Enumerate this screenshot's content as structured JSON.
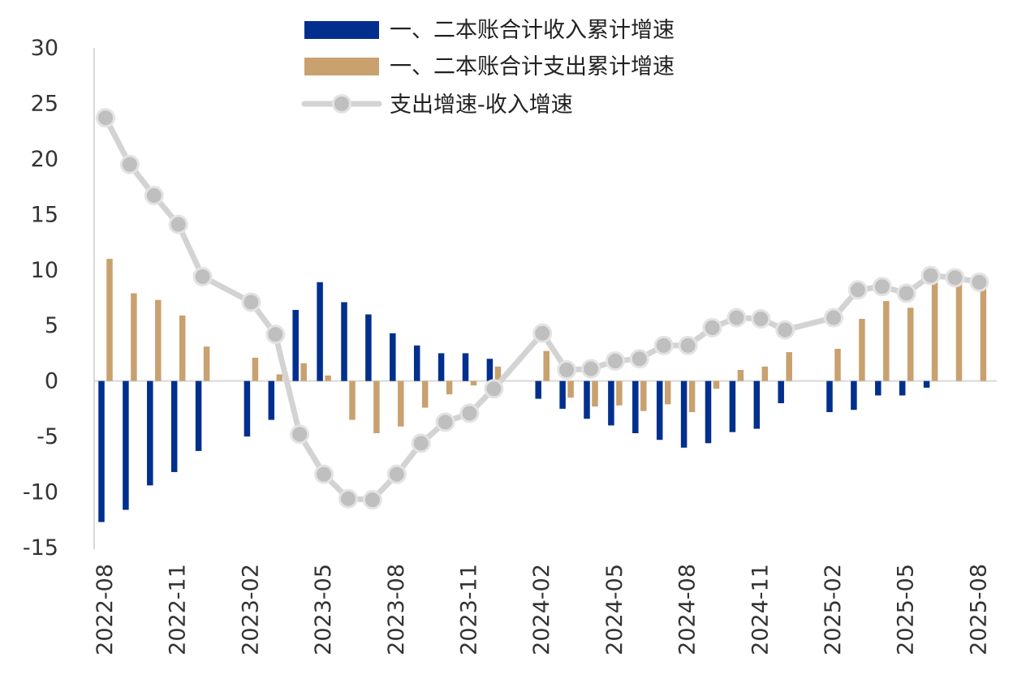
{
  "chart_data": {
    "type": "bar",
    "title": "",
    "xlabel": "",
    "ylabel": "",
    "ylim": [
      -15,
      30
    ],
    "yticks": [
      30,
      25,
      20,
      15,
      10,
      5,
      0,
      -5,
      -10,
      -15
    ],
    "x": [
      "2022-08",
      "2022-09",
      "2022-10",
      "2022-11",
      "2022-12",
      "2023-01",
      "2023-02",
      "2023-03",
      "2023-04",
      "2023-05",
      "2023-06",
      "2023-07",
      "2023-08",
      "2023-09",
      "2023-10",
      "2023-11",
      "2023-12",
      "2024-01",
      "2024-02",
      "2024-03",
      "2024-04",
      "2024-05",
      "2024-06",
      "2024-07",
      "2024-08",
      "2024-09",
      "2024-10",
      "2024-11",
      "2024-12",
      "2025-01",
      "2025-02",
      "2025-03",
      "2025-04",
      "2025-05",
      "2025-06",
      "2025-07",
      "2025-08"
    ],
    "xticks_shown": [
      "2022-08",
      "2022-11",
      "2023-02",
      "2023-05",
      "2023-08",
      "2023-11",
      "2024-02",
      "2024-05",
      "2024-08",
      "2024-11",
      "2025-02",
      "2025-05",
      "2025-08"
    ],
    "legend_position": "top",
    "grid": false,
    "series": [
      {
        "name": "一、二本账合计收入累计增速",
        "kind": "bar",
        "color": "#002f8e",
        "values": [
          -12.7,
          -11.6,
          -9.4,
          -8.2,
          -6.3,
          null,
          -5.0,
          -3.5,
          6.4,
          8.9,
          7.1,
          6.0,
          4.3,
          3.2,
          2.5,
          2.5,
          2.0,
          null,
          -1.6,
          -2.5,
          -3.4,
          -4.0,
          -4.7,
          -5.3,
          -6.0,
          -5.6,
          -4.6,
          -4.3,
          -2.0,
          null,
          -2.8,
          -2.6,
          -1.3,
          -1.3,
          -0.6,
          null,
          null
        ]
      },
      {
        "name": "一、二本账合计支出累计增速",
        "kind": "bar",
        "color": "#c8a16f",
        "values": [
          11.0,
          7.9,
          7.3,
          5.9,
          3.1,
          null,
          2.1,
          0.6,
          1.6,
          0.5,
          -3.5,
          -4.7,
          -4.1,
          -2.4,
          -1.2,
          -0.4,
          1.3,
          null,
          2.7,
          -1.5,
          -2.3,
          -2.2,
          -2.7,
          -2.1,
          -2.8,
          -0.7,
          1.0,
          1.3,
          2.6,
          null,
          2.9,
          5.6,
          7.2,
          6.6,
          8.9,
          8.7,
          8.3
        ]
      },
      {
        "name": "支出增速-收入增速",
        "kind": "line",
        "color": "#d3d3d3",
        "values": [
          23.7,
          19.5,
          16.7,
          14.1,
          9.4,
          null,
          7.1,
          4.2,
          -4.8,
          -8.4,
          -10.6,
          -10.7,
          -8.4,
          -5.6,
          -3.7,
          -2.9,
          -0.7,
          null,
          4.3,
          1.0,
          1.1,
          1.8,
          2.0,
          3.2,
          3.2,
          4.8,
          5.7,
          5.6,
          4.6,
          null,
          5.7,
          8.2,
          8.5,
          7.9,
          9.5,
          9.3,
          8.9
        ]
      }
    ]
  }
}
